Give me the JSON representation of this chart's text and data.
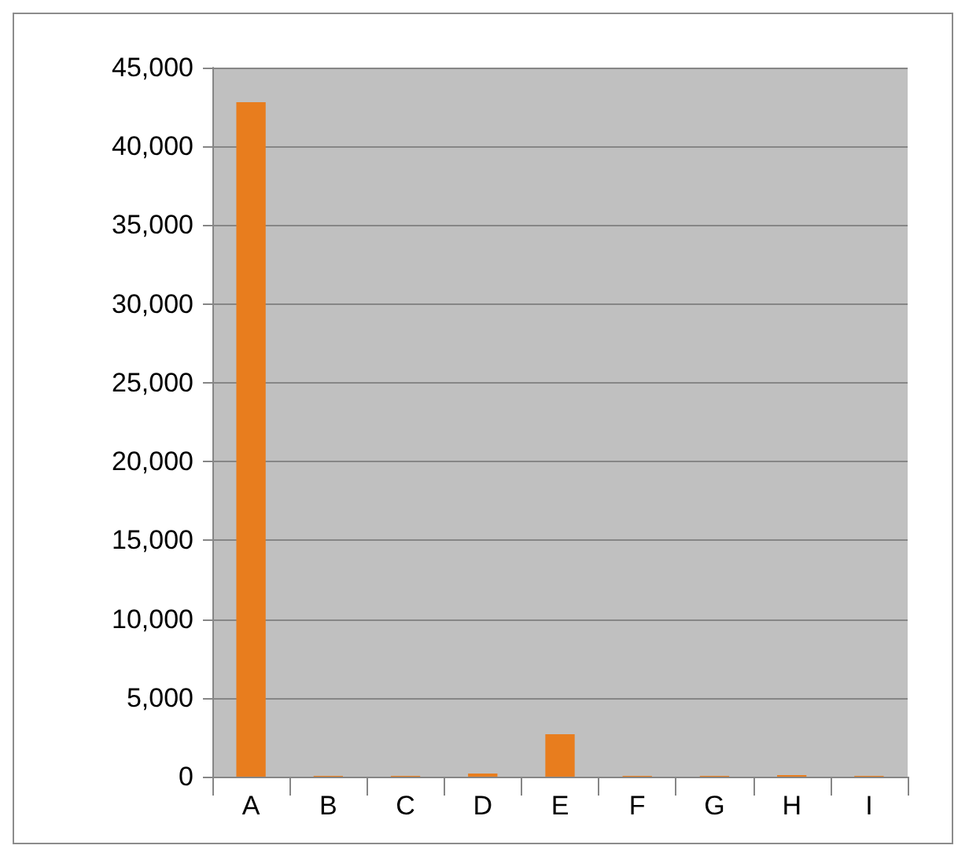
{
  "chart_data": {
    "type": "bar",
    "categories": [
      "A",
      "B",
      "C",
      "D",
      "E",
      "F",
      "G",
      "H",
      "I"
    ],
    "values": [
      42800,
      50,
      50,
      200,
      2700,
      50,
      50,
      100,
      50
    ],
    "color": "#e87d1e",
    "ylim": [
      0,
      45000
    ],
    "yticks": [
      0,
      {
        "value": 5000,
        "label": "5,000"
      },
      {
        "value": 10000,
        "label": "10,000"
      },
      {
        "value": 15000,
        "label": "15,000"
      },
      {
        "value": 20000,
        "label": "20,000"
      },
      {
        "value": 25000,
        "label": "25,000"
      },
      {
        "value": 30000,
        "label": "30,000"
      },
      {
        "value": 35000,
        "label": "35,000"
      },
      {
        "value": 40000,
        "label": "40,000"
      },
      {
        "value": 45000,
        "label": "45,000"
      }
    ],
    "grid": "y"
  }
}
